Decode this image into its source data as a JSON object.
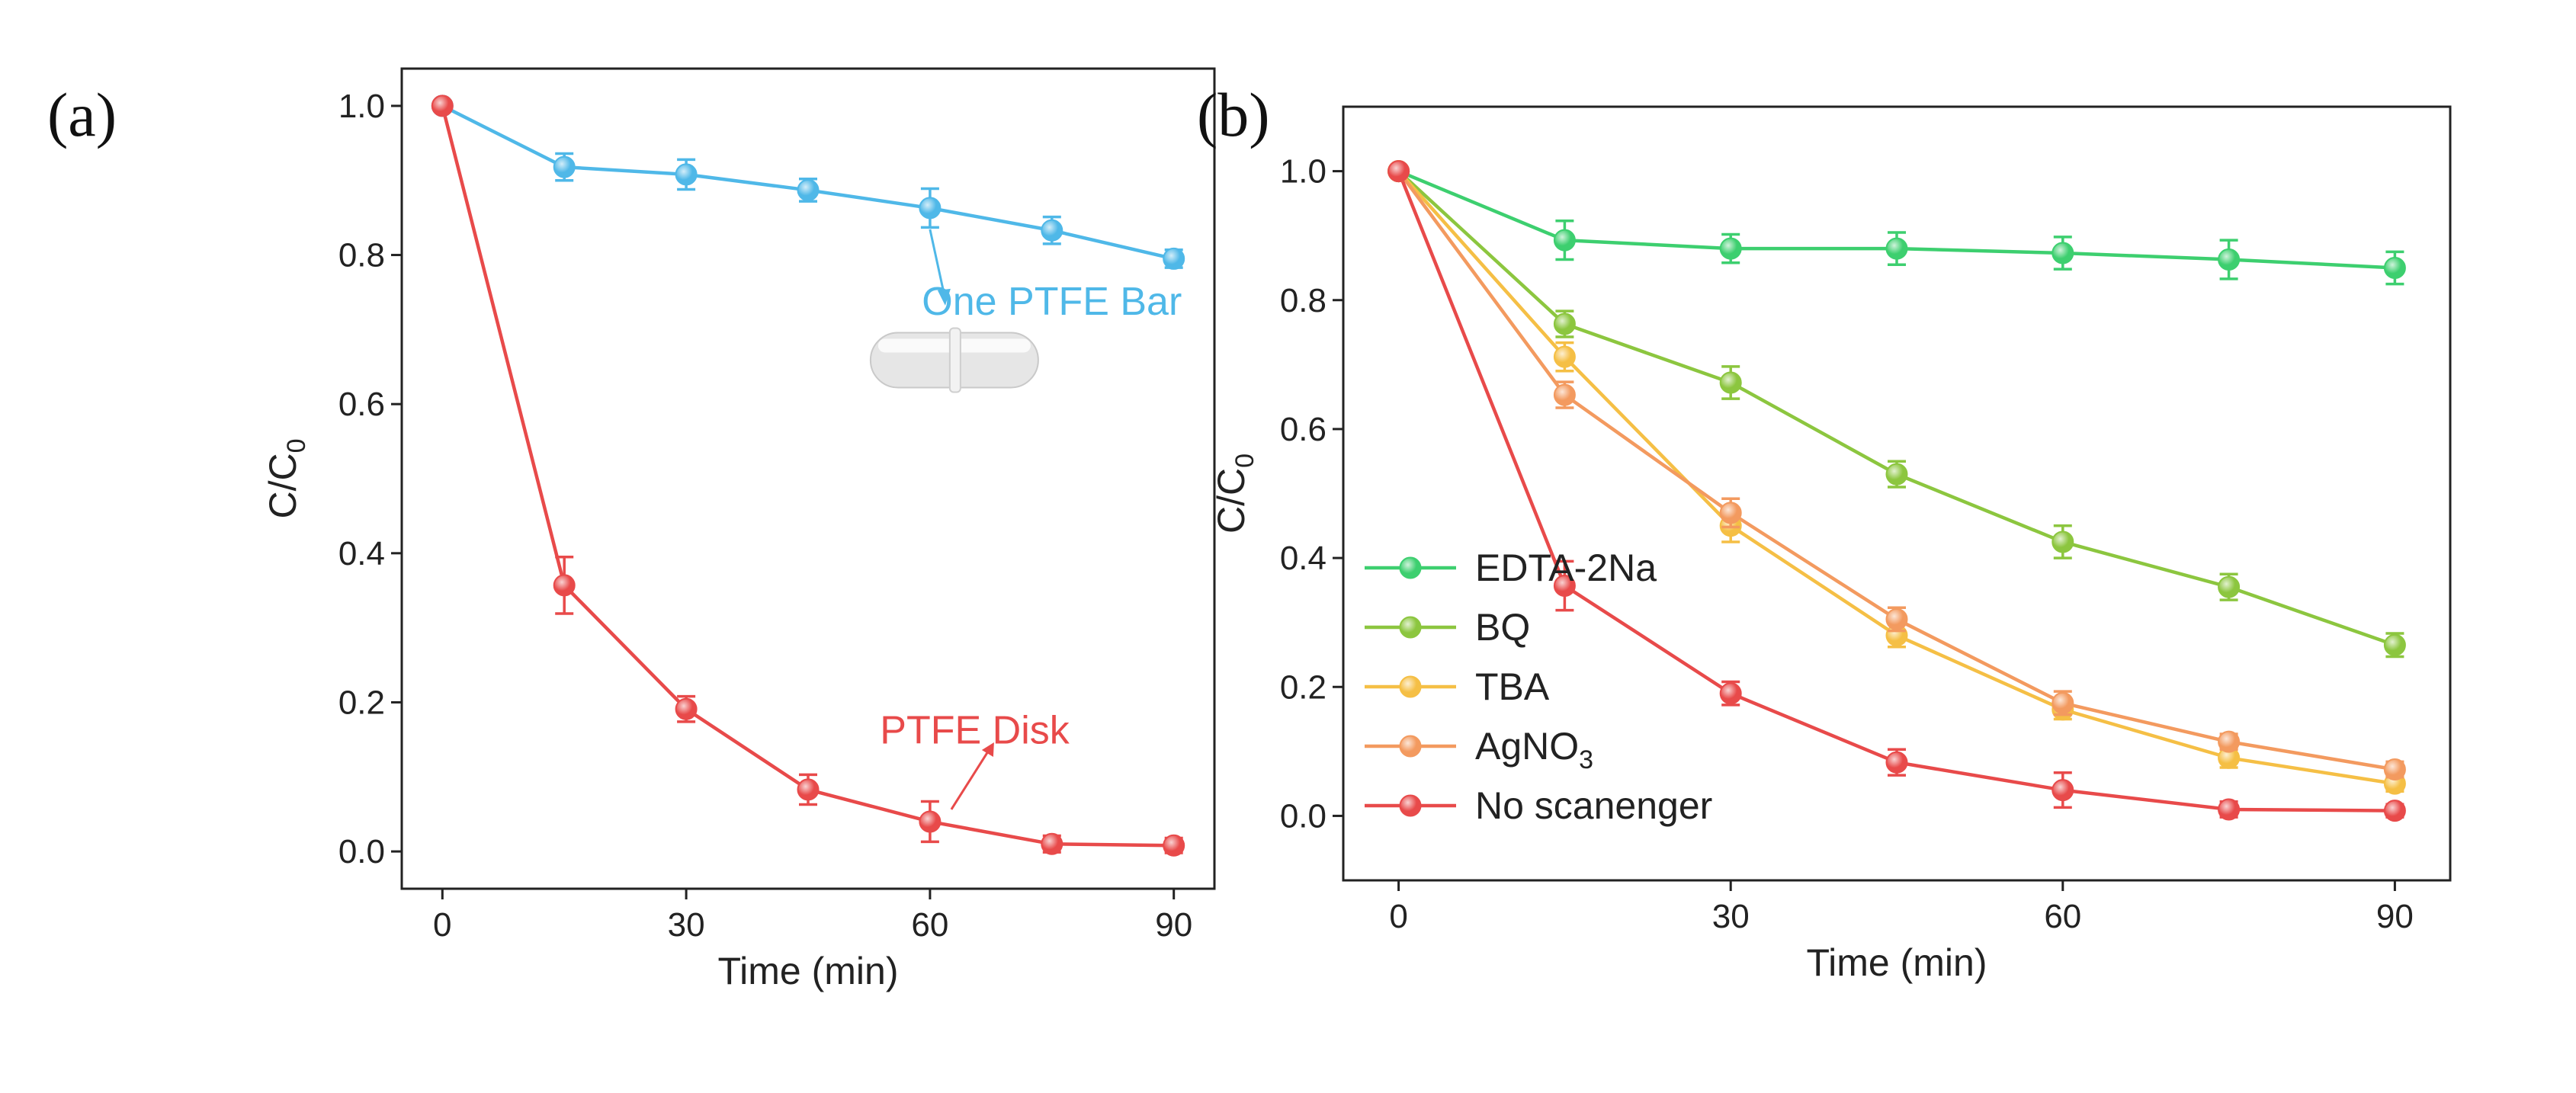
{
  "figure": {
    "panel_a_label": "(a)",
    "panel_b_label": "(b)"
  },
  "chart_data": [
    {
      "type": "line",
      "panel": "(a)",
      "title": "",
      "xlabel": "Time (min)",
      "ylabel": "C/C",
      "ylabel_sub": "0",
      "xlim": [
        -5,
        95
      ],
      "ylim": [
        -0.05,
        1.05
      ],
      "xticks": [
        0,
        30,
        60,
        90
      ],
      "xtick_labels": [
        "0",
        "30",
        "60",
        "90"
      ],
      "yticks": [
        0,
        0.2,
        0.4,
        0.6,
        0.8,
        1.0
      ],
      "ytick_labels": [
        "0.0",
        "0.2",
        "0.4",
        "0.6",
        "0.8",
        "1.0"
      ],
      "grid": false,
      "series": [
        {
          "name": "One PTFE Bar",
          "color": "#4fb8e8",
          "x": [
            0,
            15,
            30,
            45,
            60,
            75,
            90
          ],
          "y": [
            1.0,
            0.918,
            0.908,
            0.887,
            0.863,
            0.833,
            0.795
          ],
          "err": [
            0.0,
            0.018,
            0.02,
            0.015,
            0.026,
            0.018,
            0.012
          ]
        },
        {
          "name": "PTFE Disk",
          "color": "#e84a4a",
          "x": [
            0,
            15,
            30,
            45,
            60,
            75,
            90
          ],
          "y": [
            1.0,
            0.357,
            0.191,
            0.083,
            0.04,
            0.01,
            0.008
          ],
          "err": [
            0.0,
            0.038,
            0.017,
            0.02,
            0.027,
            0.011,
            0.01
          ]
        }
      ],
      "annotations": [
        {
          "text": "One PTFE Bar",
          "color": "#4fb8e8",
          "series": 0,
          "from_x": 60
        },
        {
          "text": "PTFE Disk",
          "color": "#e84a4a",
          "series": 1,
          "from_x": 60
        }
      ],
      "inset": {
        "name": "ptfe-stir-bar",
        "color": "#e6e6e6"
      }
    },
    {
      "type": "line",
      "panel": "(b)",
      "title": "",
      "xlabel": "Time (min)",
      "ylabel": "C/C",
      "ylabel_sub": "0",
      "xlim": [
        -5,
        95
      ],
      "ylim": [
        -0.1,
        1.1
      ],
      "xticks": [
        0,
        30,
        60,
        90
      ],
      "xtick_labels": [
        "0",
        "30",
        "60",
        "90"
      ],
      "yticks": [
        0,
        0.2,
        0.4,
        0.6,
        0.8,
        1.0
      ],
      "ytick_labels": [
        "0.0",
        "0.2",
        "0.4",
        "0.6",
        "0.8",
        "1.0"
      ],
      "grid": false,
      "legend_position": "lower-left",
      "series": [
        {
          "name": "EDTA-2Na",
          "color": "#3dcf6f",
          "x": [
            0,
            15,
            30,
            45,
            60,
            75,
            90
          ],
          "y": [
            1.0,
            0.893,
            0.88,
            0.88,
            0.873,
            0.863,
            0.85
          ],
          "err": [
            0.0,
            0.03,
            0.022,
            0.025,
            0.025,
            0.03,
            0.025
          ]
        },
        {
          "name": "BQ",
          "color": "#8cc63f",
          "x": [
            0,
            15,
            30,
            45,
            60,
            75,
            90
          ],
          "y": [
            1.0,
            0.763,
            0.672,
            0.53,
            0.425,
            0.355,
            0.265
          ],
          "err": [
            0.0,
            0.02,
            0.025,
            0.02,
            0.025,
            0.02,
            0.018
          ]
        },
        {
          "name": "TBA",
          "color": "#f5bf45",
          "x": [
            0,
            15,
            30,
            45,
            60,
            75,
            90
          ],
          "y": [
            1.0,
            0.712,
            0.45,
            0.28,
            0.165,
            0.09,
            0.05
          ],
          "err": [
            0.0,
            0.022,
            0.025,
            0.018,
            0.015,
            0.015,
            0.012
          ]
        },
        {
          "name": "AgNO",
          "name_sub": "3",
          "color": "#f39a5f",
          "x": [
            0,
            15,
            30,
            45,
            60,
            75,
            90
          ],
          "y": [
            1.0,
            0.653,
            0.47,
            0.305,
            0.175,
            0.115,
            0.072
          ],
          "err": [
            0.0,
            0.02,
            0.022,
            0.018,
            0.018,
            0.012,
            0.012
          ]
        },
        {
          "name": "No scanenger",
          "color": "#e84a4a",
          "x": [
            0,
            15,
            30,
            45,
            60,
            75,
            90
          ],
          "y": [
            1.0,
            0.357,
            0.19,
            0.083,
            0.04,
            0.01,
            0.008
          ],
          "err": [
            0.0,
            0.038,
            0.018,
            0.02,
            0.027,
            0.012,
            0.01
          ]
        }
      ]
    }
  ]
}
